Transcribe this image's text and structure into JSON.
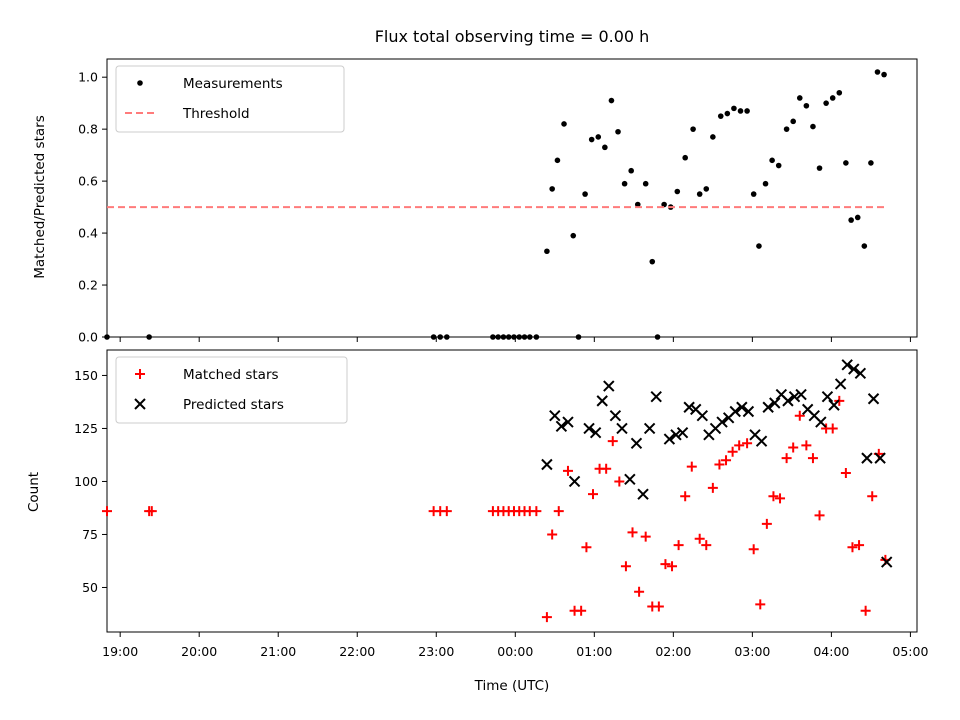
{
  "chart_data": [
    {
      "type": "scatter",
      "title": "Flux total observing time = 0.00 h",
      "xlabel": "",
      "ylabel": "Matched/Predicted stars",
      "x_type": "time",
      "xlim": [
        "18:50",
        "05:05"
      ],
      "ylim": [
        0,
        1.07
      ],
      "yticks": [
        0.0,
        0.2,
        0.4,
        0.6,
        0.8,
        1.0
      ],
      "legend_position": "upper-left",
      "grid": false,
      "series": [
        {
          "name": "Measurements",
          "marker": "dot",
          "color": "#000000",
          "points": [
            [
              "18:50",
              0.0
            ],
            [
              "19:22",
              0.0
            ],
            [
              "22:58",
              0.0
            ],
            [
              "23:03",
              0.0
            ],
            [
              "23:08",
              0.0
            ],
            [
              "23:43",
              0.0
            ],
            [
              "23:47",
              0.0
            ],
            [
              "23:51",
              0.0
            ],
            [
              "23:55",
              0.0
            ],
            [
              "23:59",
              0.0
            ],
            [
              "00:03",
              0.0
            ],
            [
              "00:07",
              0.0
            ],
            [
              "00:11",
              0.0
            ],
            [
              "00:16",
              0.0
            ],
            [
              "00:24",
              0.33
            ],
            [
              "00:28",
              0.57
            ],
            [
              "00:32",
              0.68
            ],
            [
              "00:37",
              0.82
            ],
            [
              "00:44",
              0.39
            ],
            [
              "00:48",
              0.0
            ],
            [
              "00:53",
              0.55
            ],
            [
              "00:58",
              0.76
            ],
            [
              "01:03",
              0.77
            ],
            [
              "01:08",
              0.73
            ],
            [
              "01:13",
              0.91
            ],
            [
              "01:18",
              0.79
            ],
            [
              "01:23",
              0.59
            ],
            [
              "01:28",
              0.64
            ],
            [
              "01:33",
              0.51
            ],
            [
              "01:39",
              0.59
            ],
            [
              "01:44",
              0.29
            ],
            [
              "01:48",
              0.0
            ],
            [
              "01:53",
              0.51
            ],
            [
              "01:58",
              0.5
            ],
            [
              "02:03",
              0.56
            ],
            [
              "02:09",
              0.69
            ],
            [
              "02:15",
              0.8
            ],
            [
              "02:20",
              0.55
            ],
            [
              "02:25",
              0.57
            ],
            [
              "02:30",
              0.77
            ],
            [
              "02:36",
              0.85
            ],
            [
              "02:41",
              0.86
            ],
            [
              "02:46",
              0.88
            ],
            [
              "02:51",
              0.87
            ],
            [
              "02:56",
              0.87
            ],
            [
              "03:01",
              0.55
            ],
            [
              "03:05",
              0.35
            ],
            [
              "03:10",
              0.59
            ],
            [
              "03:15",
              0.68
            ],
            [
              "03:20",
              0.66
            ],
            [
              "03:26",
              0.8
            ],
            [
              "03:31",
              0.83
            ],
            [
              "03:36",
              0.92
            ],
            [
              "03:41",
              0.89
            ],
            [
              "03:46",
              0.81
            ],
            [
              "03:51",
              0.65
            ],
            [
              "03:56",
              0.9
            ],
            [
              "04:01",
              0.92
            ],
            [
              "04:06",
              0.94
            ],
            [
              "04:11",
              0.67
            ],
            [
              "04:15",
              0.45
            ],
            [
              "04:20",
              0.46
            ],
            [
              "04:25",
              0.35
            ],
            [
              "04:30",
              0.67
            ],
            [
              "04:35",
              1.02
            ],
            [
              "04:40",
              1.01
            ]
          ]
        },
        {
          "name": "Threshold",
          "style": "dashed-line",
          "color": "#ff7b7b",
          "points": [
            [
              "18:50",
              0.5
            ],
            [
              "04:40",
              0.5
            ]
          ]
        }
      ]
    },
    {
      "type": "scatter",
      "title": "",
      "xlabel": "Time (UTC)",
      "ylabel": "Count",
      "x_type": "time",
      "xlim": [
        "18:50",
        "05:05"
      ],
      "ylim": [
        29,
        162
      ],
      "yticks": [
        50,
        75,
        100,
        125,
        150
      ],
      "xticks": [
        "19:00",
        "20:00",
        "21:00",
        "22:00",
        "23:00",
        "00:00",
        "01:00",
        "02:00",
        "03:00",
        "04:00",
        "05:00"
      ],
      "legend_position": "upper-left",
      "grid": false,
      "series": [
        {
          "name": "Matched stars",
          "marker": "plus",
          "color": "#ff0000",
          "points": [
            [
              "18:50",
              86
            ],
            [
              "19:22",
              86
            ],
            [
              "19:24",
              86
            ],
            [
              "22:58",
              86
            ],
            [
              "23:03",
              86
            ],
            [
              "23:08",
              86
            ],
            [
              "23:43",
              86
            ],
            [
              "23:47",
              86
            ],
            [
              "23:51",
              86
            ],
            [
              "23:55",
              86
            ],
            [
              "23:59",
              86
            ],
            [
              "00:03",
              86
            ],
            [
              "00:07",
              86
            ],
            [
              "00:11",
              86
            ],
            [
              "00:16",
              86
            ],
            [
              "00:24",
              36
            ],
            [
              "00:28",
              75
            ],
            [
              "00:33",
              86
            ],
            [
              "00:40",
              105
            ],
            [
              "00:45",
              39
            ],
            [
              "00:50",
              39
            ],
            [
              "00:54",
              69
            ],
            [
              "00:59",
              94
            ],
            [
              "01:04",
              106
            ],
            [
              "01:09",
              106
            ],
            [
              "01:14",
              119
            ],
            [
              "01:19",
              100
            ],
            [
              "01:24",
              60
            ],
            [
              "01:29",
              76
            ],
            [
              "01:34",
              48
            ],
            [
              "01:39",
              74
            ],
            [
              "01:44",
              41
            ],
            [
              "01:49",
              41
            ],
            [
              "01:54",
              61
            ],
            [
              "01:59",
              60
            ],
            [
              "02:04",
              70
            ],
            [
              "02:09",
              93
            ],
            [
              "02:14",
              107
            ],
            [
              "02:20",
              73
            ],
            [
              "02:25",
              70
            ],
            [
              "02:30",
              97
            ],
            [
              "02:35",
              108
            ],
            [
              "02:40",
              110
            ],
            [
              "02:45",
              114
            ],
            [
              "02:50",
              117
            ],
            [
              "02:56",
              118
            ],
            [
              "03:01",
              68
            ],
            [
              "03:06",
              42
            ],
            [
              "03:11",
              80
            ],
            [
              "03:16",
              93
            ],
            [
              "03:21",
              92
            ],
            [
              "03:26",
              111
            ],
            [
              "03:31",
              116
            ],
            [
              "03:36",
              131
            ],
            [
              "03:41",
              117
            ],
            [
              "03:46",
              111
            ],
            [
              "03:51",
              84
            ],
            [
              "03:56",
              125
            ],
            [
              "04:01",
              125
            ],
            [
              "04:06",
              138
            ],
            [
              "04:11",
              104
            ],
            [
              "04:16",
              69
            ],
            [
              "04:21",
              70
            ],
            [
              "04:26",
              39
            ],
            [
              "04:31",
              93
            ],
            [
              "04:36",
              113
            ],
            [
              "04:41",
              63
            ]
          ]
        },
        {
          "name": "Predicted stars",
          "marker": "x",
          "color": "#000000",
          "points": [
            [
              "00:24",
              108
            ],
            [
              "00:30",
              131
            ],
            [
              "00:35",
              126
            ],
            [
              "00:40",
              128
            ],
            [
              "00:45",
              100
            ],
            [
              "00:56",
              125
            ],
            [
              "01:01",
              123
            ],
            [
              "01:06",
              138
            ],
            [
              "01:11",
              145
            ],
            [
              "01:16",
              131
            ],
            [
              "01:21",
              125
            ],
            [
              "01:27",
              101
            ],
            [
              "01:32",
              118
            ],
            [
              "01:37",
              94
            ],
            [
              "01:42",
              125
            ],
            [
              "01:47",
              140
            ],
            [
              "01:57",
              120
            ],
            [
              "02:02",
              122
            ],
            [
              "02:07",
              123
            ],
            [
              "02:12",
              135
            ],
            [
              "02:17",
              134
            ],
            [
              "02:22",
              131
            ],
            [
              "02:27",
              122
            ],
            [
              "02:32",
              125
            ],
            [
              "02:37",
              128
            ],
            [
              "02:42",
              130
            ],
            [
              "02:47",
              133
            ],
            [
              "02:52",
              135
            ],
            [
              "02:57",
              133
            ],
            [
              "03:02",
              122
            ],
            [
              "03:07",
              119
            ],
            [
              "03:12",
              135
            ],
            [
              "03:17",
              137
            ],
            [
              "03:22",
              141
            ],
            [
              "03:27",
              138
            ],
            [
              "03:32",
              140
            ],
            [
              "03:37",
              141
            ],
            [
              "03:42",
              134
            ],
            [
              "03:47",
              131
            ],
            [
              "03:52",
              128
            ],
            [
              "03:57",
              140
            ],
            [
              "04:02",
              136
            ],
            [
              "04:07",
              146
            ],
            [
              "04:12",
              155
            ],
            [
              "04:17",
              153
            ],
            [
              "04:22",
              151
            ],
            [
              "04:27",
              111
            ],
            [
              "04:32",
              139
            ],
            [
              "04:37",
              111
            ],
            [
              "04:42",
              62
            ]
          ]
        }
      ]
    }
  ]
}
